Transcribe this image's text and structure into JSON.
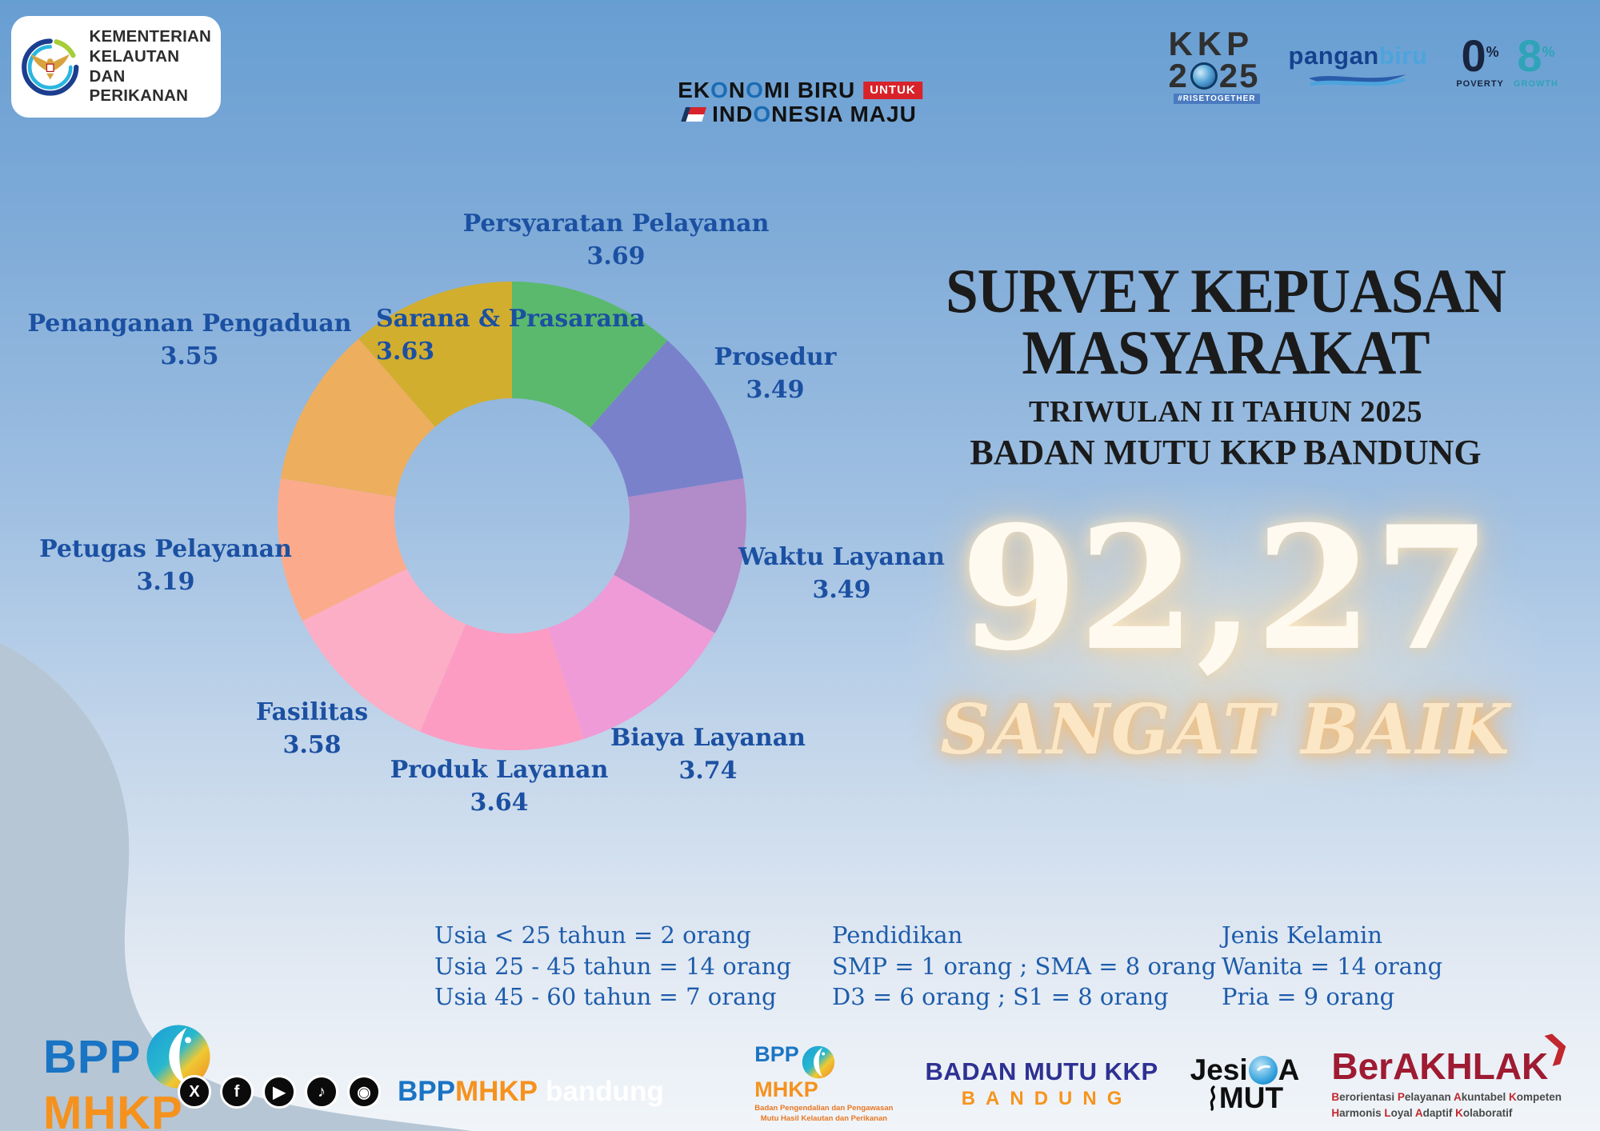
{
  "header": {
    "ministry": {
      "line1": "KEMENTERIAN",
      "line2": "KELAUTAN DAN",
      "line3": "PERIKANAN"
    },
    "tagline": {
      "line1": "EKONOMI BIRU",
      "untuk": "UNTUK",
      "line2": "INDONESIA MAJU"
    },
    "kkp2025": {
      "kkp": "KKP",
      "year_a": "2",
      "year_b": "25",
      "hashtag": "#RISETOGETHER"
    },
    "panganbiru": {
      "part1": "pangan",
      "part2": "biru"
    },
    "zero_eight": {
      "zero": "0",
      "eight": "8",
      "pct": "%",
      "poverty": "POVERTY",
      "growth": "GROWTH"
    }
  },
  "title": {
    "line1": "SURVEY KEPUASAN",
    "line2": "MASYARAKAT",
    "line3": "TRIWULAN II TAHUN 2025",
    "line4": "BADAN MUTU KKP BANDUNG"
  },
  "score": {
    "value": "92,27",
    "rating": "SANGAT BAIK"
  },
  "chart_data": {
    "type": "pie",
    "subtype": "donut",
    "start_angle_deg": -90,
    "direction": "clockwise",
    "segments": [
      {
        "label": "Persyaratan Pelayanan",
        "value": 3.69,
        "color": "#5bb96d"
      },
      {
        "label": "Prosedur",
        "value": 3.49,
        "color": "#7a81cb"
      },
      {
        "label": "Waktu Layanan",
        "value": 3.49,
        "color": "#b28bc9"
      },
      {
        "label": "Biaya Layanan",
        "value": 3.74,
        "color": "#ee9bd8"
      },
      {
        "label": "Produk Layanan",
        "value": 3.64,
        "color": "#fc9cc3"
      },
      {
        "label": "Fasilitas",
        "value": 3.58,
        "color": "#fbaec6"
      },
      {
        "label": "Petugas Pelayanan",
        "value": 3.19,
        "color": "#fbab8c"
      },
      {
        "label": "Penanganan Pengaduan",
        "value": 3.55,
        "color": "#edae5e"
      },
      {
        "label": "Sarana & Prasarana",
        "value": 3.63,
        "color": "#d2ae2f"
      }
    ]
  },
  "demographics": {
    "age": {
      "rows": [
        "Usia < 25 tahun = 2 orang",
        "Usia 25 - 45 tahun = 14 orang",
        "Usia 45 - 60 tahun = 7 orang"
      ]
    },
    "education": {
      "title": "Pendidikan",
      "rows": [
        "SMP = 1 orang ; SMA = 8 orang",
        "D3 = 6 orang ; S1 = 8 orang"
      ]
    },
    "gender": {
      "title": "Jenis Kelamin",
      "rows": [
        "Wanita = 14 orang",
        "Pria = 9 orang"
      ]
    }
  },
  "footer": {
    "brand": {
      "bpp": "BPP",
      "mhkp": "MHKP"
    },
    "social": [
      {
        "name": "x-icon",
        "glyph": "X"
      },
      {
        "name": "facebook-icon",
        "glyph": "f"
      },
      {
        "name": "youtube-icon",
        "glyph": "▶"
      },
      {
        "name": "tiktok-icon",
        "glyph": "♪"
      },
      {
        "name": "instagram-icon",
        "glyph": "◉"
      }
    ],
    "handle": {
      "bpp": "BPP",
      "mhkp": "MHKP",
      "city": "bandung"
    },
    "bpp_mini": {
      "bpp": "BPP",
      "mhkp": "MHKP",
      "tagline1": "Badan Pengendalian dan Pengawasan",
      "tagline2": "Mutu Hasil Kelautan dan Perikanan"
    },
    "badan_mutu": {
      "line1": "BADAN MUTU KKP",
      "line2": "BANDUNG"
    },
    "jesiqa": {
      "jesi": "Jesi",
      "a": "A",
      "mut": "MUT"
    },
    "berakhlak": {
      "name": "BerAKHLAK",
      "sub1": "Berorientasi Pelayanan Akuntabel Kompeten",
      "sub2": "Harmonis Loyal Adaptif Kolaboratif"
    }
  }
}
